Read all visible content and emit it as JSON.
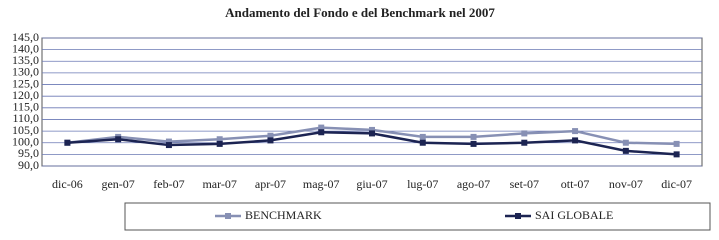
{
  "chart_data": {
    "type": "line",
    "title": "Andamento del Fondo e del Benchmark nel 2007",
    "categories": [
      "dic-06",
      "gen-07",
      "feb-07",
      "mar-07",
      "apr-07",
      "mag-07",
      "giu-07",
      "lug-07",
      "ago-07",
      "set-07",
      "ott-07",
      "nov-07",
      "dic-07"
    ],
    "series": [
      {
        "name": "BENCHMARK",
        "color": "#8790b4",
        "values": [
          100,
          102.5,
          100.5,
          101.5,
          103,
          106.5,
          105.5,
          102.5,
          102.5,
          104,
          105,
          100,
          99.5
        ]
      },
      {
        "name": "SAI GLOBALE",
        "color": "#1c2452",
        "values": [
          100,
          101.5,
          99,
          99.5,
          101,
          104.5,
          104,
          100,
          99.5,
          100,
          101,
          96.5,
          95
        ]
      }
    ],
    "ylim": [
      90,
      145
    ],
    "yticks": [
      {
        "value": 90,
        "label": "90,0"
      },
      {
        "value": 95,
        "label": "95,0"
      },
      {
        "value": 100,
        "label": "100,0"
      },
      {
        "value": 105,
        "label": "105,0"
      },
      {
        "value": 110,
        "label": "110,0"
      },
      {
        "value": 115,
        "label": "115,0"
      },
      {
        "value": 120,
        "label": "120,0"
      },
      {
        "value": 125,
        "label": "125,0"
      },
      {
        "value": 130,
        "label": "130,0"
      },
      {
        "value": 135,
        "label": "135,0"
      },
      {
        "value": 140,
        "label": "140,0"
      },
      {
        "value": 145,
        "label": "145,0"
      }
    ],
    "grid": true,
    "legend": "bottom"
  }
}
